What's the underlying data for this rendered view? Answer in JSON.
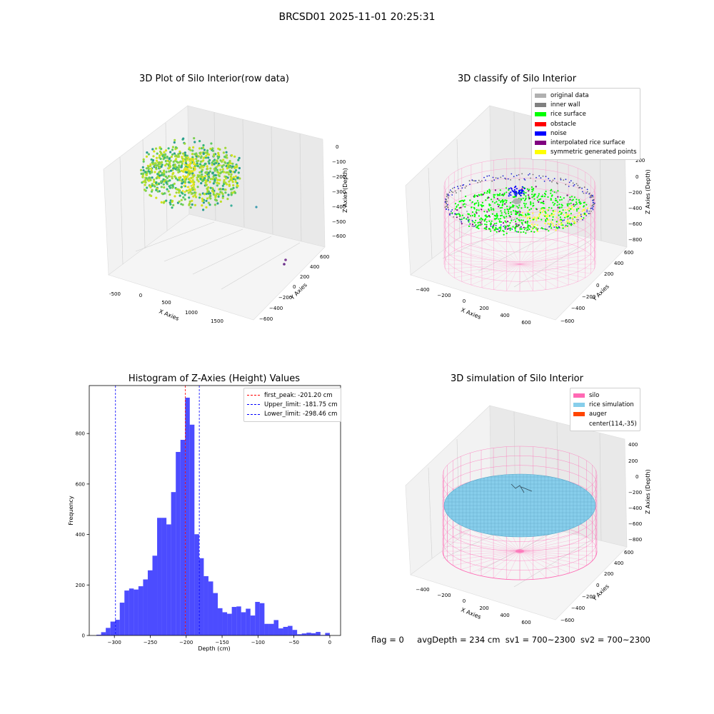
{
  "figure": {
    "suptitle": "BRCSD01 2025-11-01 20:25:31",
    "status": {
      "flag": "flag = 0",
      "avg_depth": "avgDepth = 234 cm",
      "sv1": "sv1 = 700~2300",
      "sv2": "sv2 = 700~2300"
    }
  },
  "panels": {
    "raw": {
      "title": "3D Plot of Silo Interior(row data)",
      "xlabel": "X Axies",
      "ylabel": "Y Axies",
      "zlabel": "Z Axies (Depth)",
      "xticks": [
        "-500",
        "0",
        "500",
        "1000",
        "1500"
      ],
      "yticks": [
        "600",
        "400",
        "200",
        "0",
        "−200",
        "−400",
        "−600"
      ],
      "zticks": [
        "0",
        "−100",
        "−200",
        "−300",
        "−400",
        "−500",
        "−600"
      ]
    },
    "classify": {
      "title": "3D classify of Silo Interior",
      "xlabel": "X Axies",
      "ylabel": "Y Axies",
      "zlabel": "Z Axies (Depth)",
      "xticks": [
        "−400",
        "−200",
        "0",
        "200",
        "400",
        "600"
      ],
      "yticks": [
        "600",
        "400",
        "200",
        "0",
        "−200",
        "−400",
        "−600"
      ],
      "zticks": [
        "200",
        "0",
        "−200",
        "−400",
        "−600",
        "−800"
      ],
      "legend": [
        {
          "label": "original data",
          "color": "#b0b0b0"
        },
        {
          "label": "inner wall",
          "color": "#808080"
        },
        {
          "label": "rice surface",
          "color": "#00ff00"
        },
        {
          "label": "obstacle",
          "color": "#ff0000"
        },
        {
          "label": "noise",
          "color": "#0000ff"
        },
        {
          "label": "interpolated rice surface",
          "color": "#800080"
        },
        {
          "label": "symmetric generated points",
          "color": "#ffff00"
        }
      ]
    },
    "simulation": {
      "title": "3D simulation of Silo Interior",
      "xlabel": "X Axies",
      "ylabel": "Y Axies",
      "zlabel": "Z Axies (Depth)",
      "xticks": [
        "−400",
        "−200",
        "0",
        "200",
        "400",
        "600"
      ],
      "yticks": [
        "600",
        "400",
        "200",
        "0",
        "−200",
        "−400",
        "−600"
      ],
      "zticks": [
        "400",
        "200",
        "0",
        "−200",
        "−400",
        "−600",
        "−800"
      ],
      "legend": [
        {
          "label": "silo",
          "color": "#ff69b4"
        },
        {
          "label": "rice simulation",
          "color": "#87ceeb"
        },
        {
          "label": "auger",
          "color": "#ff4500"
        },
        {
          "label": "center(114,-35)",
          "color": ""
        }
      ]
    }
  },
  "chart_data": {
    "type": "bar",
    "title": "Histogram of Z-Axies (Height) Values",
    "xlabel": "Depth (cm)",
    "ylabel": "Frequency",
    "xlim": [
      -335,
      15
    ],
    "ylim": [
      0,
      990
    ],
    "xticks": [
      -300,
      -250,
      -200,
      -150,
      -100,
      -50,
      0
    ],
    "xtick_labels": [
      "−300",
      "−250",
      "−200",
      "−150",
      "−100",
      "−50",
      "0"
    ],
    "yticks": [
      0,
      200,
      400,
      600,
      800
    ],
    "bin_width": 6.5,
    "bin_start": -325,
    "values": [
      3,
      13,
      30,
      55,
      62,
      130,
      178,
      186,
      182,
      195,
      222,
      258,
      316,
      466,
      466,
      440,
      568,
      727,
      775,
      942,
      835,
      401,
      306,
      235,
      214,
      168,
      108,
      92,
      86,
      113,
      115,
      92,
      106,
      79,
      133,
      128,
      46,
      46,
      61,
      28,
      34,
      38,
      22,
      5,
      8,
      11,
      9,
      14,
      2,
      10
    ],
    "color": "#0000ff",
    "alpha": 0.7,
    "lines": [
      {
        "label": "first_peak: -201.20 cm",
        "x": -201.2,
        "color": "#ff0000"
      },
      {
        "label": "Upper_limit: -181.75 cm",
        "x": -181.75,
        "color": "#0000ff"
      },
      {
        "label": "Lower_limit: -298.46 cm",
        "x": -298.46,
        "color": "#0000ff"
      }
    ],
    "legend_position": "upper right"
  }
}
